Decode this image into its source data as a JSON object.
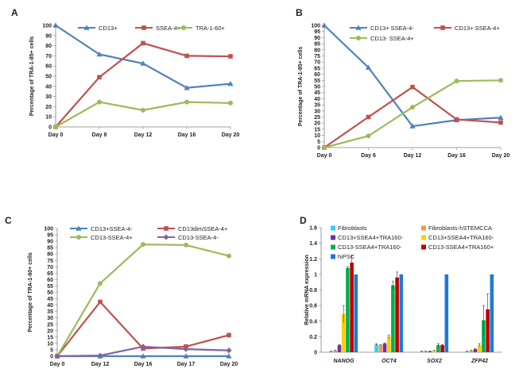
{
  "chart_data": [
    {
      "panel": "A",
      "type": "line",
      "categories": [
        "Day 0",
        "Day 8",
        "Day 12",
        "Day 16",
        "Day 20"
      ],
      "ylabel": "Percentage of TRA-1-85+ cells",
      "ylim": [
        0,
        100
      ],
      "yticks": [
        0,
        10,
        20,
        30,
        40,
        50,
        60,
        70,
        80,
        90,
        100
      ],
      "legend": "top",
      "series": [
        {
          "name": "CD13+",
          "color": "#4f81bd",
          "marker": "triangle",
          "values": [
            100,
            71.5,
            62.5,
            38.5,
            42.5
          ]
        },
        {
          "name": "SSEA-4+",
          "color": "#c0504d",
          "marker": "square",
          "values": [
            0,
            49,
            82.5,
            70,
            69.5
          ]
        },
        {
          "name": "TRA-1-60+",
          "color": "#9bbb59",
          "marker": "circle",
          "values": [
            0,
            24.5,
            16.5,
            24.5,
            23.5
          ]
        }
      ]
    },
    {
      "panel": "B",
      "type": "line",
      "categories": [
        "Day 0",
        "Day 6",
        "Day 12",
        "Day 16",
        "Day 20"
      ],
      "ylabel": "Percentage of TRA-1-85+ cells",
      "ylim": [
        0,
        100
      ],
      "yticks": [
        0,
        5,
        10,
        15,
        20,
        25,
        30,
        35,
        40,
        45,
        50,
        55,
        60,
        65,
        70,
        75,
        80,
        85,
        90,
        95,
        100
      ],
      "legend": "top",
      "series": [
        {
          "name": "CD13+ SSEA-4-",
          "color": "#4f81bd",
          "marker": "triangle",
          "values": [
            100,
            65.5,
            17.5,
            22.5,
            24.5
          ]
        },
        {
          "name": "CD13+ SSEA-4+",
          "color": "#c0504d",
          "marker": "square",
          "values": [
            0,
            25,
            49.5,
            23,
            20.5
          ]
        },
        {
          "name": "CD13- SSEA-4+",
          "color": "#9bbb59",
          "marker": "circle",
          "values": [
            0,
            9.5,
            33,
            54.5,
            55
          ]
        }
      ]
    },
    {
      "panel": "C",
      "type": "line",
      "categories": [
        "Day 0",
        "Day 12",
        "Day 16",
        "Day 17",
        "Day 20"
      ],
      "ylabel": "Percentage of TRA-1-60+ cells",
      "ylim": [
        0,
        100
      ],
      "yticks": [
        0,
        5,
        10,
        15,
        20,
        25,
        30,
        35,
        40,
        45,
        50,
        55,
        60,
        65,
        70,
        75,
        80,
        85,
        90,
        95,
        100
      ],
      "legend": "top",
      "series": [
        {
          "name": "CD13+SSEA-4-",
          "color": "#4f81bd",
          "marker": "triangle",
          "values": [
            0,
            0,
            0,
            0,
            0
          ]
        },
        {
          "name": "CD13dimSSEA-4+",
          "color": "#c0504d",
          "marker": "square",
          "values": [
            0,
            42.5,
            6,
            7.5,
            16.5
          ]
        },
        {
          "name": "CD13-SSEA-4+",
          "color": "#9bbb59",
          "marker": "circle",
          "values": [
            0,
            57,
            87.5,
            87,
            78.5
          ]
        },
        {
          "name": "CD13-SSEA-4-",
          "color": "#8064a2",
          "marker": "diamond",
          "values": [
            0,
            0.5,
            7.5,
            5.5,
            4.5
          ]
        }
      ]
    },
    {
      "panel": "D",
      "type": "bar",
      "categories": [
        "NANOG",
        "OCT4",
        "SOX2",
        "ZFP42"
      ],
      "ylabel": "Relative mRNA expression",
      "ylim": [
        0,
        1.6
      ],
      "yticks": [
        "0",
        "0.2",
        "0.4",
        "0.6",
        "0.8",
        "1",
        "1.2",
        "1.4",
        "1.6"
      ],
      "legend": "top",
      "series": [
        {
          "name": "Fibroblasts",
          "color": "#33ccff",
          "values": [
            0.01,
            0.1,
            0.01,
            0.01
          ],
          "errors": [
            0.005,
            0.01,
            0.005,
            0.005
          ]
        },
        {
          "name": "Fibroblasts-hSTEMCCA",
          "color": "#f79646",
          "values": [
            0.02,
            0.09,
            0.01,
            0.02
          ],
          "errors": [
            0.005,
            0.01,
            0.005,
            0.005
          ]
        },
        {
          "name": "CD13+SSEA4+TRA160-",
          "color": "#7030a0",
          "values": [
            0.09,
            0.11,
            0.01,
            0.04
          ],
          "errors": [
            0.01,
            0.01,
            0.005,
            0.01
          ]
        },
        {
          "name": "CD13+SSEA4+TRA160-",
          "color": "#ffcc00",
          "values": [
            0.49,
            0.2,
            0.02,
            0.09
          ],
          "errors": [
            0.11,
            0.02,
            0.005,
            0.02
          ]
        },
        {
          "name": "CD13-SSEA4+TRA160-",
          "color": "#00b050",
          "values": [
            1.08,
            0.86,
            0.09,
            0.41
          ],
          "errors": [
            0.02,
            0.05,
            0.02,
            0.19
          ]
        },
        {
          "name": "CD13-SSEA4+TRA160+",
          "color": "#c00000",
          "values": [
            1.15,
            0.96,
            0.09,
            0.55
          ],
          "errors": [
            0.09,
            0.07,
            0.01,
            0.2
          ]
        },
        {
          "name": "hiPSC",
          "color": "#1f7bd6",
          "values": [
            1,
            1,
            1,
            1
          ],
          "errors": [
            0,
            0,
            0,
            0
          ]
        }
      ]
    }
  ]
}
